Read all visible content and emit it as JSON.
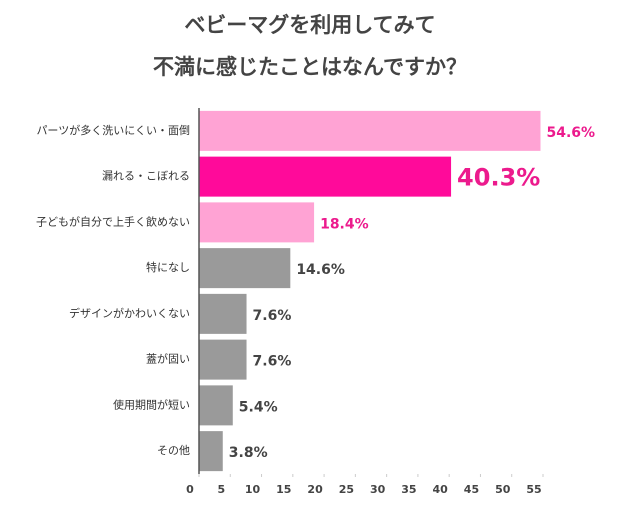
{
  "chart_data": {
    "type": "hbar",
    "title_lines": [
      "ベビーマグを利用してみて",
      "不満に感じたことはなんですか？"
    ],
    "categories": [
      "パーツが多く洗いにくい・面倒",
      "漏れる・こぼれる",
      "子どもが自分で上手く飲めない",
      "特になし",
      "デザインがかわいくない",
      "蓋が固い",
      "使用期間が短い",
      "その他"
    ],
    "values": [
      54.6,
      40.3,
      18.4,
      14.6,
      7.6,
      7.6,
      5.4,
      3.8
    ],
    "value_labels": [
      "54.6%",
      "40.3%",
      "18.4%",
      "14.6%",
      "7.6%",
      "7.6%",
      "5.4%",
      "3.8%"
    ],
    "colors": [
      "#ffa3d4",
      "#ff0a9a",
      "#ffa3d4",
      "#9a9a9a",
      "#9a9a9a",
      "#9a9a9a",
      "#9a9a9a",
      "#9a9a9a"
    ],
    "value_label_colors": [
      "#ec1a8d",
      "#ec1a8d",
      "#ec1a8d",
      "#444444",
      "#444444",
      "#444444",
      "#444444",
      "#444444"
    ],
    "highlight_index": 1,
    "xlim": [
      0,
      55
    ],
    "xticks": [
      0,
      5,
      10,
      15,
      20,
      25,
      30,
      35,
      40,
      45,
      50,
      55
    ]
  }
}
